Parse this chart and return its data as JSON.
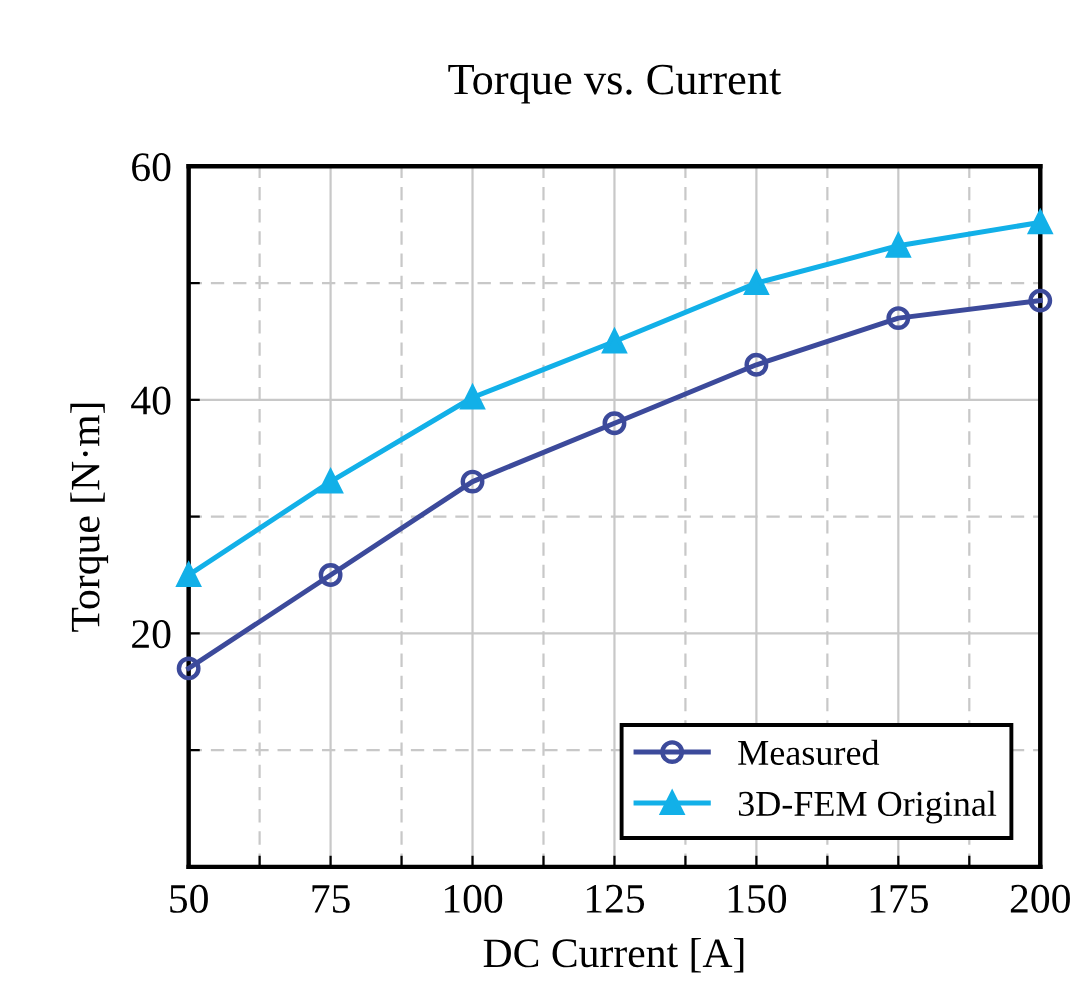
{
  "chart_data": {
    "type": "line",
    "title": "Torque vs. Current",
    "xlabel": "DC Current [A]",
    "ylabel": "Torque [N·m]",
    "x": [
      50,
      75,
      100,
      125,
      150,
      175,
      200
    ],
    "series": [
      {
        "name": "Measured",
        "color": "#3c4a9b",
        "marker": "circle",
        "values": [
          17,
          25,
          33,
          38,
          43,
          47,
          48.5
        ]
      },
      {
        "name": "3D-FEM Original",
        "color": "#12b0e8",
        "marker": "triangle",
        "values": [
          25,
          33,
          40.2,
          45,
          50,
          53.2,
          55.2
        ]
      }
    ],
    "xlim": [
      50,
      200
    ],
    "ylim": [
      0,
      60
    ],
    "xticks": [
      50,
      {
        "value": 62.5,
        "label": null
      },
      75,
      {
        "value": 87.5,
        "label": null
      },
      100,
      {
        "value": 112.5,
        "label": null
      },
      125,
      {
        "value": 137.5,
        "label": null
      },
      150,
      {
        "value": 162.5,
        "label": null
      },
      175,
      {
        "value": 187.5,
        "label": null
      },
      200
    ],
    "yticks": [
      {
        "value": 10,
        "label": null
      },
      20,
      {
        "value": 30,
        "label": null
      },
      40,
      {
        "value": 50,
        "label": null
      },
      60
    ],
    "grid": true,
    "legend": "bottom right",
    "line_style": "solid"
  }
}
